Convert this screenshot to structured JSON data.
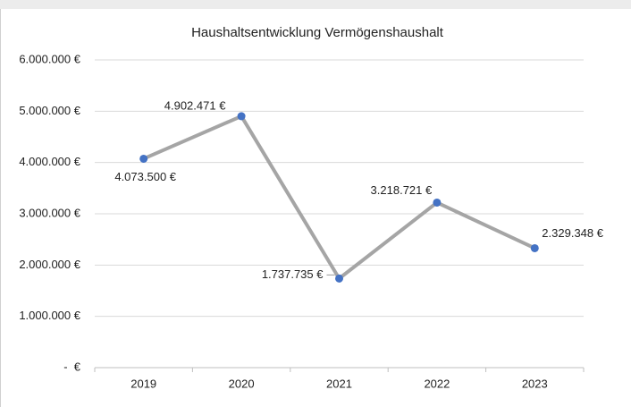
{
  "chart_data": {
    "type": "line",
    "title": "Haushaltsentwicklung Vermögenshaushalt",
    "categories": [
      "2019",
      "2020",
      "2021",
      "2022",
      "2023"
    ],
    "series": [
      {
        "name": "Vermögenshaushalt",
        "color": "#a5a5a5",
        "marker_color": "#4472c4",
        "values": [
          4073500,
          4902471,
          1737735,
          3218721,
          2329348
        ],
        "value_labels": [
          "4.073.500 €",
          "4.902.471 €",
          "1.737.735 €",
          "3.218.721 €",
          "2.329.348 €"
        ]
      }
    ],
    "ylim": [
      0,
      6000000
    ],
    "yticks": [
      {
        "value": 0,
        "label": "-  €"
      },
      {
        "value": 1000000,
        "label": "1.000.000 €"
      },
      {
        "value": 2000000,
        "label": "2.000.000 €"
      },
      {
        "value": 3000000,
        "label": "3.000.000 €"
      },
      {
        "value": 4000000,
        "label": "4.000.000 €"
      },
      {
        "value": 5000000,
        "label": "5.000.000 €"
      },
      {
        "value": 6000000,
        "label": "6.000.000 €"
      }
    ],
    "grid": true
  }
}
